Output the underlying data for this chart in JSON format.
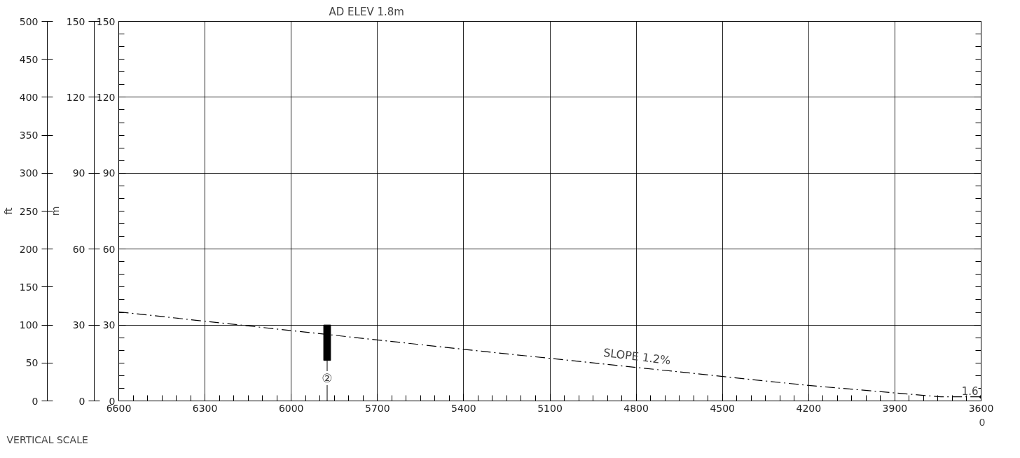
{
  "chart_data": {
    "type": "bar",
    "title": "AD ELEV 1.8m",
    "xlim": [
      6600,
      3600
    ],
    "xticks": [
      6600,
      6300,
      6000,
      5700,
      5400,
      5100,
      4800,
      4500,
      4200,
      3900,
      3600
    ],
    "ylim": [
      0,
      150
    ],
    "yticks": [
      0,
      30,
      60,
      90,
      120,
      150
    ],
    "grid": true,
    "y2label": "ft",
    "y2lim": [
      0,
      500
    ],
    "y2ticks": [
      0,
      50,
      100,
      150,
      200,
      250,
      300,
      350,
      400,
      450,
      500
    ],
    "y3label": "m",
    "y3lim": [
      0,
      150
    ],
    "y3ticks": [
      0,
      30,
      60,
      90,
      120,
      150
    ],
    "series": [
      {
        "x": [
          5875
        ],
        "base": [
          16
        ],
        "values": [
          14
        ],
        "color": "#000000"
      },
      {
        "type": "line",
        "x": [
          6600,
          5400,
          4200,
          3740,
          3600
        ],
        "values": [
          35.2,
          20.4,
          6.1,
          1.6,
          1.6
        ],
        "color": "#000000",
        "line_style": "dashed",
        "marker": "none"
      }
    ],
    "annotations": [
      "SLOPE 1.2%",
      {
        "text": "②",
        "x": 5875,
        "y": 9
      },
      {
        "text": "1.6",
        "x": 3600,
        "y": 1.6
      },
      "0",
      "VERTICAL SCALE"
    ]
  }
}
